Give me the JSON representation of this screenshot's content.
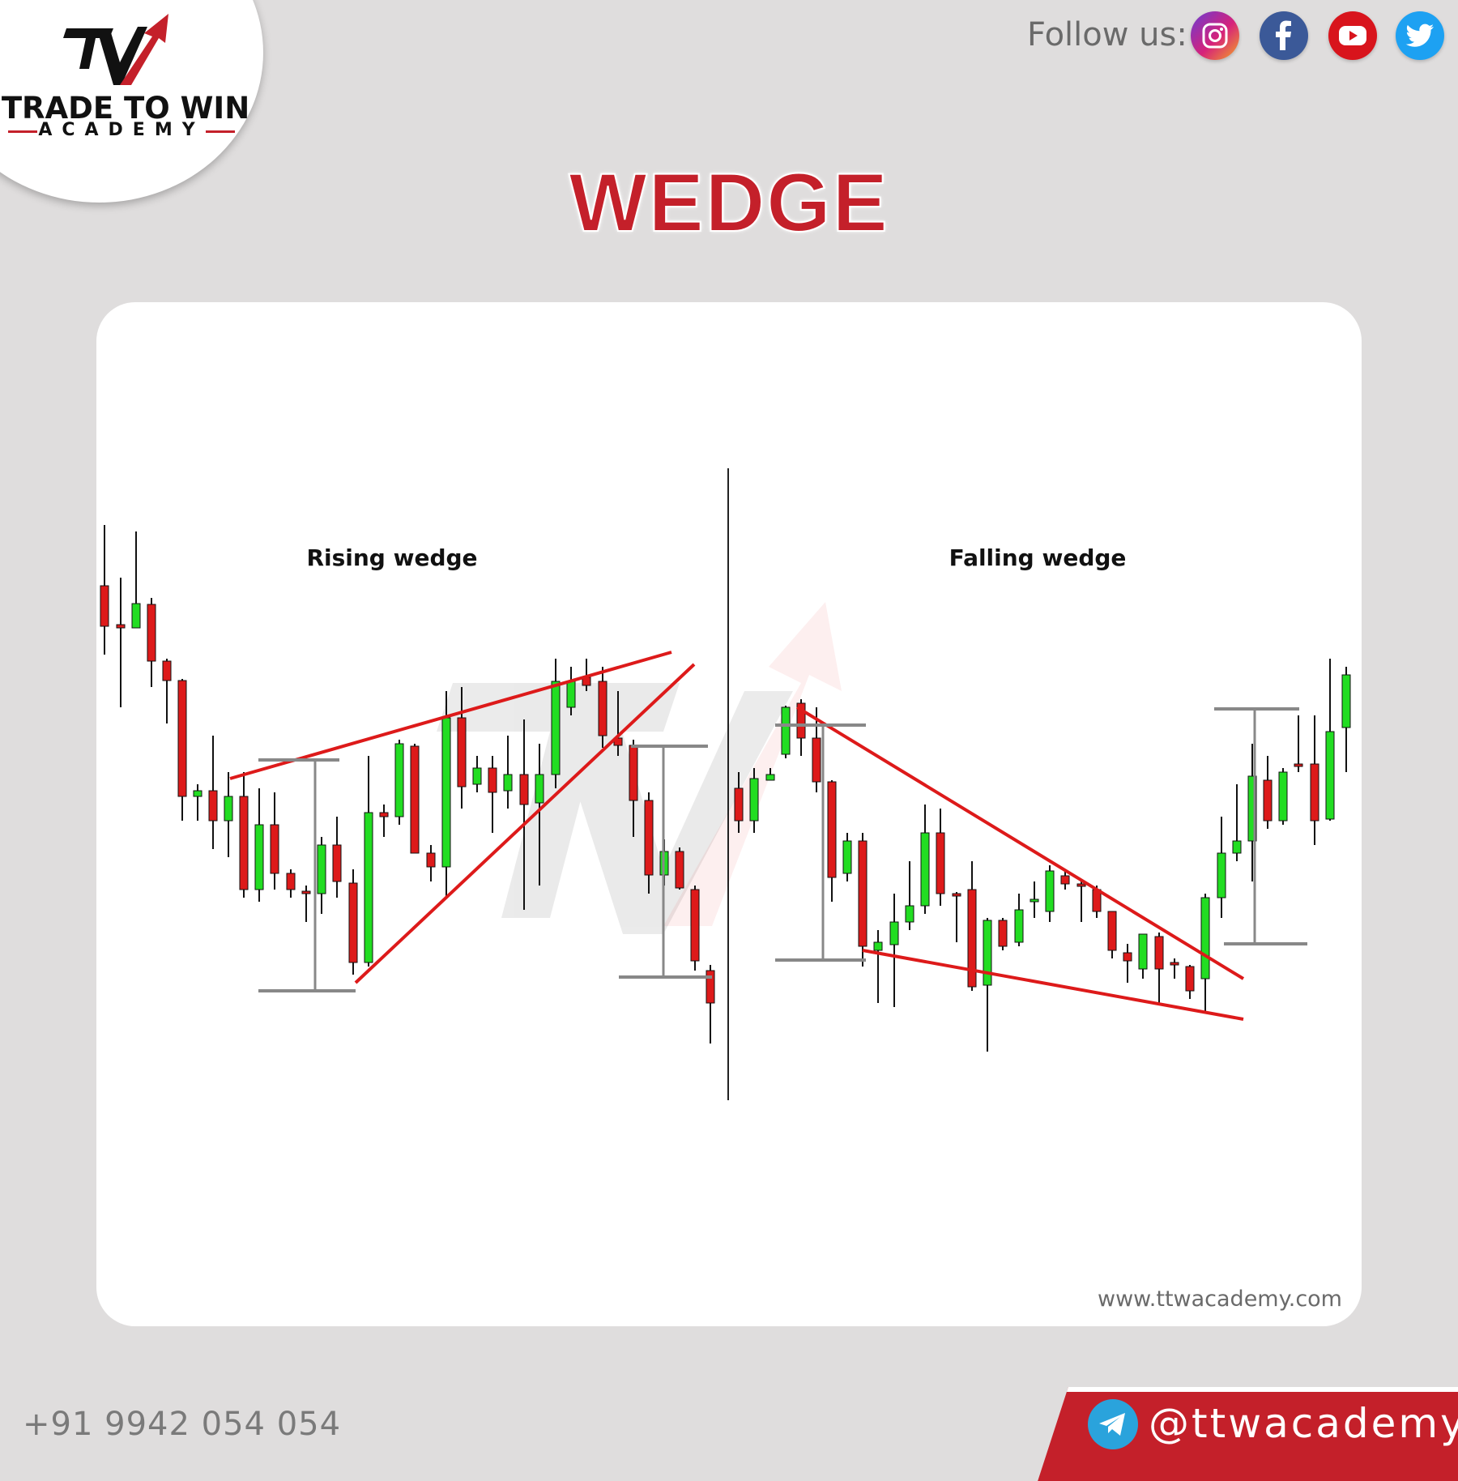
{
  "brand": {
    "name": "TRADE TO WIN",
    "sub": "ACADEMY",
    "accent": "#c4202a",
    "logo_mark": "ttw-monogram-logo"
  },
  "header": {
    "follow_label": "Follow us:",
    "socials": [
      {
        "name": "instagram-icon",
        "color": "#c13584"
      },
      {
        "name": "facebook-icon",
        "color": "#3b5998"
      },
      {
        "name": "youtube-icon",
        "color": "#d8141c"
      },
      {
        "name": "twitter-icon",
        "color": "#1da1f2"
      }
    ]
  },
  "title": "WEDGE",
  "diagram": {
    "left_label": "Rising wedge",
    "right_label": "Falling wedge",
    "bull_color": "#22dd22",
    "bear_color": "#dd1a1a",
    "trendline_color": "#dd1a1a",
    "watermark": "ttw-watermark-logo",
    "website": "www.ttwacademy.com"
  },
  "footer": {
    "phone": "+91 9942 054 054",
    "handle": "@ttwacademy",
    "telegram_icon": "telegram-icon"
  }
}
